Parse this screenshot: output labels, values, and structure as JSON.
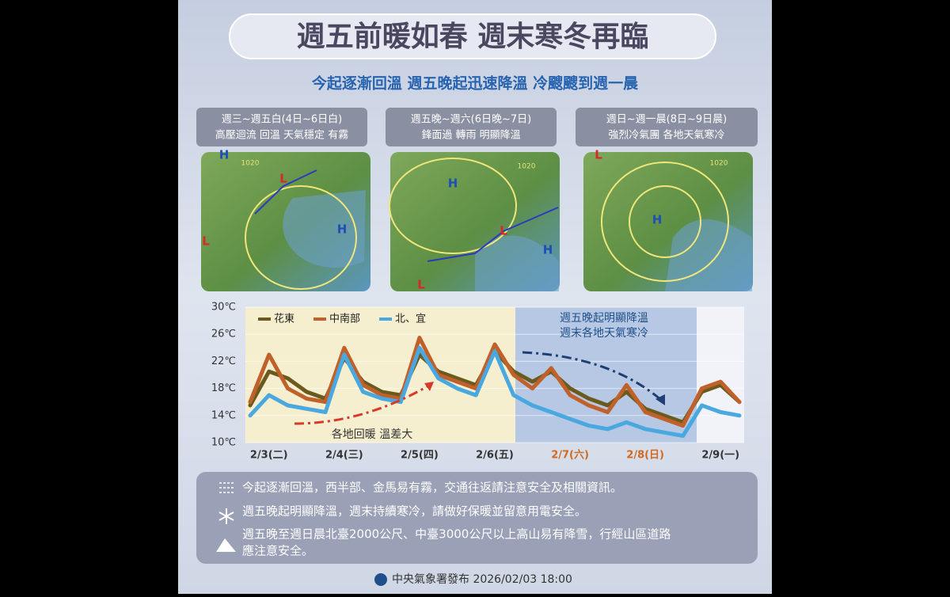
{
  "header": {
    "title": "週五前暖如春  週末寒冬再臨",
    "subtitle": "今起逐漸回溫 週五晚起迅速降溫 冷颼颼到週一晨"
  },
  "panels": [
    {
      "period": "週三~週五白(4日~6日白)",
      "desc": "高壓迴流 回溫 天氣穩定 有霧",
      "map_labels": [
        "H",
        "L",
        "H",
        "L",
        "1020"
      ]
    },
    {
      "period": "週五晚~週六(6日晚~7日)",
      "desc": "鋒面過 轉雨 明顯降溫",
      "map_labels": [
        "H",
        "L",
        "H",
        "L",
        "1020"
      ]
    },
    {
      "period": "週日~週一晨(8日~9日晨)",
      "desc": "強烈冷氣團 各地天氣寒冷",
      "map_labels": [
        "L",
        "H",
        "1020"
      ]
    }
  ],
  "chart_data": {
    "type": "line",
    "categories": [
      null,
      "2/3(二)",
      null,
      null,
      null,
      "2/4(三)",
      null,
      null,
      null,
      "2/5(四)",
      null,
      null,
      null,
      "2/6(五)",
      null,
      null,
      null,
      "2/7(六)",
      null,
      null,
      null,
      "2/8(日)",
      null,
      null,
      null,
      "2/9(一)",
      null
    ],
    "series": [
      {
        "name": "花東",
        "color": "#6b5a1e",
        "values": [
          15.5,
          20.5,
          19.5,
          17.5,
          16.5,
          22.5,
          19,
          17.5,
          17,
          23,
          20.5,
          19.5,
          18.5,
          23.5,
          20.5,
          19,
          20.5,
          18,
          16.5,
          15.5,
          17.5,
          15,
          14,
          13,
          17.5,
          18.5,
          16
        ]
      },
      {
        "name": "中南部",
        "color": "#c0602a",
        "values": [
          16,
          23,
          18,
          16.5,
          16,
          24,
          18.5,
          17,
          16.5,
          25.5,
          20,
          19,
          18,
          24.5,
          20,
          18,
          21,
          17,
          15.5,
          14.5,
          18.5,
          14.5,
          13.5,
          12.5,
          18,
          19,
          16
        ]
      },
      {
        "name": "北、宜",
        "color": "#4aa8e0",
        "values": [
          14,
          17,
          15.5,
          15,
          14.5,
          23,
          17.5,
          16.5,
          16,
          24,
          19.5,
          18,
          17,
          23.5,
          17,
          15.5,
          14.5,
          13.5,
          12.5,
          12,
          13,
          12,
          11.5,
          11,
          15.5,
          14.5,
          14
        ]
      }
    ],
    "ylim": [
      10,
      30
    ],
    "yticks": [
      {
        "value": 10,
        "label": "10℃"
      },
      {
        "value": 14,
        "label": "14℃"
      },
      {
        "value": 18,
        "label": "18℃"
      },
      {
        "value": 22,
        "label": "22℃"
      },
      {
        "value": 26,
        "label": "26℃"
      },
      {
        "value": 30,
        "label": "30℃"
      }
    ],
    "annotations": [
      "週五晚起明顯降溫",
      "週末各地天氣寒冷",
      "各地回暖 溫差大"
    ]
  },
  "notes": [
    "今起逐漸回溫，西半部、金馬易有霧，交通往返請注意安全及相關資訊。",
    "週五晚起明顯降溫，週末持續寒冷，請做好保暖並留意用電安全。",
    "週五晚至週日晨北臺2000公尺、中臺3000公尺以上高山易有降雪，行經山區道路",
    "應注意安全。"
  ],
  "footer": "中央氣象署發布 2026/02/03 18:00"
}
